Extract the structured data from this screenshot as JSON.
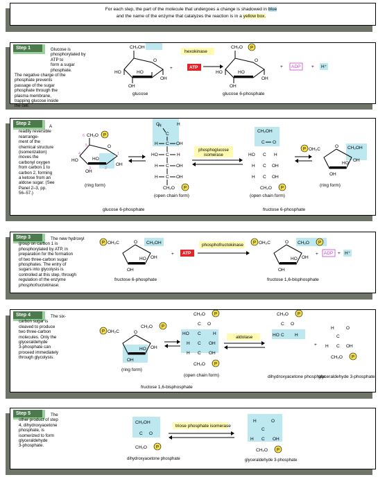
{
  "intro": {
    "line1_pre": "For each step, the part of the molecule that undergoes a change is shadowed in",
    "blue_word": "blue",
    "line2_pre": "and the name of the enzyme that catalyzes the reaction is in a",
    "yellow_phrase": "yellow box."
  },
  "colors": {
    "blue_shade": "#bde8f0",
    "yellow_box": "#fffbb0",
    "tab_green": "#4d7a4d",
    "atp_red": "#e0242a",
    "adp_magenta": "#cc44cc",
    "phosphate_yellow": "#f4e04a",
    "carbon_number_pink": "#d060c0",
    "shadow_gray": "#6e7468"
  },
  "steps": [
    {
      "tab": "Step 1",
      "desc": [
        "Glucose is",
        "phosphorylated by ATP to",
        "form a sugar phosphate.",
        "The negative charge of the",
        "phosphate prevents",
        "passage of the sugar",
        "phosphate through the",
        "plasma membrane,",
        "trapping glucose inside",
        "the cell."
      ],
      "enzyme": "hexokinase",
      "atp": "ATP",
      "adp": "ADP",
      "hplus": "H⁺",
      "substrate": "glucose",
      "product": "glucose 6-phosphate"
    },
    {
      "tab": "Step 2",
      "desc": [
        "A",
        "readily reversible",
        "rearrange-",
        "ment of the",
        "chemical structure",
        "(isomerization)",
        "moves the",
        "carbonyl oxygen",
        "from carbon 1 to",
        "carbon 2, forming",
        "a ketose from an",
        "aldose sugar. (See",
        "Panel 2–3, pp.",
        "56–57.)"
      ],
      "enzyme": "phosphoglucose isomerase",
      "ring_form": "(ring form)",
      "open_chain_form": "(open chain form)",
      "substrate": "glucose 6-phosphate",
      "product": "fructose 6-phosphate"
    },
    {
      "tab": "Step 3",
      "desc": [
        "The new hydroxyl",
        "group on carbon 1 is",
        "phosphorylated by ATP, in",
        "preparation for the formation",
        "of two three-carbon sugar",
        "phosphates. The entry of",
        "sugars into glycolysis is",
        "controlled at this step, through",
        "regulation of the enzyme",
        "phosphofructokinase."
      ],
      "enzyme": "phosphofructokinase",
      "atp": "ATP",
      "adp": "ADP",
      "hplus": "H⁺",
      "substrate": "fructose 6-phosphate",
      "product": "fructose 1,6-bisphosphate"
    },
    {
      "tab": "Step 4",
      "desc": [
        "The six-",
        "carbon sugar is",
        "cleaved to produce",
        "two three-carbon",
        "molecules. Only the",
        "glyceraldehyde",
        "3-phosphate can",
        "proceed immediately",
        "through glycolysis."
      ],
      "enzyme": "aldolase",
      "ring_form": "(ring form)",
      "open_chain_form": "(open chain form)",
      "substrate": "fructose 1,6-bisphosphate",
      "product1": "dihydroxyacetone phosphate",
      "product2": "glyceraldehyde 3-phosphate"
    },
    {
      "tab": "Step 5",
      "desc": [
        "The",
        "other product of step",
        "4, dihydroxyacetone",
        "phosphate, is",
        "isomerized to form",
        "glyceraldehyde",
        "3-phosphate."
      ],
      "enzyme": "triose phosphate isomerase",
      "substrate": "dihydroxyacetone phosphate",
      "product": "glyceraldehyde 3-phosphate"
    }
  ],
  "chem": {
    "P": "P",
    "OH": "OH",
    "HO": "HO",
    "H": "H",
    "C": "C",
    "O": "O",
    "CH2OH": "CH₂OH",
    "CH2O": "CH₂O",
    "CH2": "CH₂",
    "plus": "+",
    "c1": "1",
    "c2": "2",
    "c3": "3",
    "c4": "4",
    "c5": "5",
    "c6": "6"
  }
}
